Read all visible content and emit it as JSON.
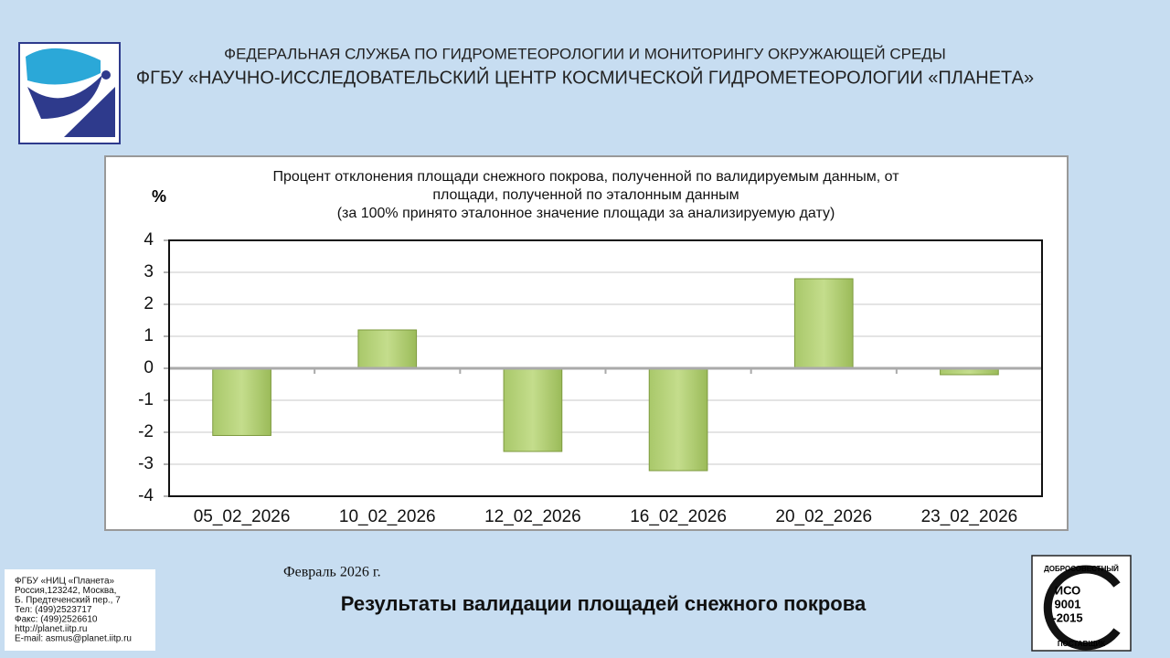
{
  "header": {
    "line1": "ФЕДЕРАЛЬНАЯ СЛУЖБА ПО ГИДРОМЕТЕОРОЛОГИИ И МОНИТОРИНГУ ОКРУЖАЮЩЕЙ СРЕДЫ",
    "line2": "ФГБУ «НАУЧНО-ИССЛЕДОВАТЕЛЬСКИЙ ЦЕНТР КОСМИЧЕСКОЙ ГИДРОМЕТЕОРОЛОГИИ «ПЛАНЕТА»"
  },
  "chart_data": {
    "type": "bar",
    "title": [
      "Процент отклонения площади снежного покрова, полученной по валидируемым данным, от",
      "площади, полученной по эталонным данным",
      "(за 100% принято эталонное значение площади за анализируемую дату)"
    ],
    "y_label": "%",
    "categories": [
      "05_02_2026",
      "10_02_2026",
      "12_02_2026",
      "16_02_2026",
      "20_02_2026",
      "23_02_2026"
    ],
    "values": [
      -2.1,
      1.2,
      -2.6,
      -3.2,
      2.8,
      -0.2
    ],
    "color": "#9bbb59",
    "ylim": [
      -4,
      4
    ],
    "yticks": [
      -4,
      -3,
      -2,
      -1,
      0,
      1,
      2,
      3,
      4
    ],
    "grid": true
  },
  "date": "Февраль 2026 г.",
  "footer_title": "Результаты валидации площадей снежного покрова",
  "contacts": [
    "ФГБУ «НИЦ «Планета»",
    "Россия,123242, Москва,",
    "Б. Предтеченский пер., 7",
    "Тел:   (499)2523717",
    "Факс: (499)2526610",
    "http://planet.iitp.ru",
    "E-mail: asmus@planet.iitp.ru"
  ],
  "iso": {
    "top": "ДОБРОСОВЕСТНЫЙ",
    "line1": "ИСО",
    "line2": "9001",
    "line3": "-2015",
    "bottom": "ПОСТАВЩИК"
  }
}
